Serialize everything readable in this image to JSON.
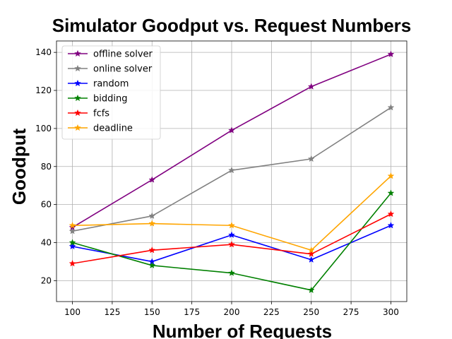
{
  "chart_data": {
    "type": "line",
    "title": "Simulator Goodput vs. Request Numbers",
    "xlabel": "Number of Requests",
    "ylabel": "Goodput",
    "x": [
      100,
      150,
      200,
      250,
      300
    ],
    "xlim": [
      90,
      310
    ],
    "ylim": [
      9,
      146
    ],
    "xticks": [
      100,
      125,
      150,
      175,
      200,
      225,
      250,
      275,
      300
    ],
    "yticks": [
      20,
      40,
      60,
      80,
      100,
      120,
      140
    ],
    "grid": true,
    "legend_position": "upper-left",
    "marker": "star",
    "series": [
      {
        "name": "offline solver",
        "color": "#800080",
        "values": [
          48,
          73,
          99,
          122,
          139
        ]
      },
      {
        "name": "online solver",
        "color": "#808080",
        "values": [
          46,
          54,
          78,
          84,
          111
        ]
      },
      {
        "name": "random",
        "color": "#0000ff",
        "values": [
          38,
          30,
          44,
          31,
          49
        ]
      },
      {
        "name": "bidding",
        "color": "#008000",
        "values": [
          40,
          28,
          24,
          15,
          66
        ]
      },
      {
        "name": "fcfs",
        "color": "#ff0000",
        "values": [
          29,
          36,
          39,
          34,
          55
        ]
      },
      {
        "name": "deadline",
        "color": "#ffa500",
        "values": [
          49,
          50,
          49,
          36,
          75
        ]
      }
    ]
  }
}
